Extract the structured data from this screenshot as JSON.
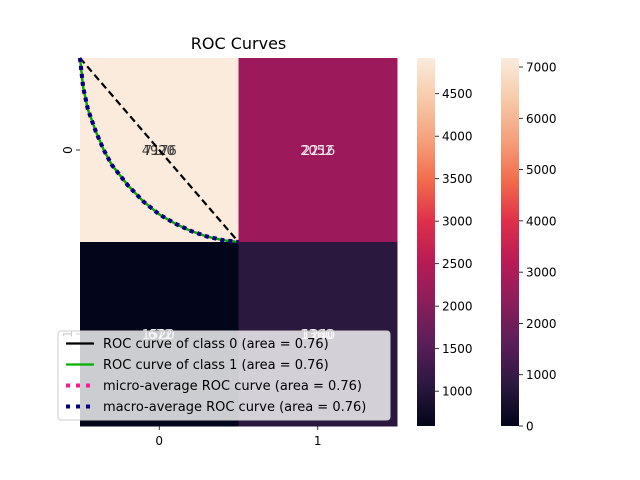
{
  "chart_data": {
    "type": "heatmap",
    "title": "ROC Curves",
    "xlabel": "",
    "ylabel": "",
    "x_tick_labels": [
      "0",
      "1"
    ],
    "y_tick_labels": [
      "0",
      "1"
    ],
    "cells": [
      {
        "row": 0,
        "col": 0,
        "labels": [
          "4920",
          "7176"
        ],
        "color": "#faebdd"
      },
      {
        "row": 0,
        "col": 1,
        "labels": [
          "2052",
          "2216"
        ],
        "color": "#9c1a5c"
      },
      {
        "row": 1,
        "col": 0,
        "labels": [
          "1520",
          "672"
        ],
        "color": "#03051a"
      },
      {
        "row": 1,
        "col": 1,
        "labels": [
          "1360",
          "1240"
        ],
        "color": "#2b183f"
      }
    ],
    "cell_text_colors": [
      [
        "#262626",
        "#ffffff"
      ],
      [
        "#ffffff",
        "#ffffff"
      ]
    ],
    "colorbars": [
      {
        "vmin": 590,
        "vmax": 4920,
        "ticks": [
          1000,
          1500,
          2000,
          2500,
          3000,
          3500,
          4000,
          4500
        ]
      },
      {
        "vmin": 0,
        "vmax": 7176,
        "ticks": [
          0,
          1000,
          2000,
          3000,
          4000,
          5000,
          6000,
          7000
        ]
      }
    ],
    "colormap": [
      "#03051a",
      "#2b183f",
      "#5a1e58",
      "#891e5b",
      "#b81b55",
      "#df2f4b",
      "#f26c4c",
      "#f5a07c",
      "#f7caa9",
      "#faebdd"
    ],
    "roc_axes": {
      "xlim": [
        0,
        1
      ],
      "ylim": [
        0,
        1
      ]
    },
    "series": [
      {
        "name": "ROC curve of class 0 (area = 0.76)",
        "color": "#000000",
        "style": "solid",
        "x": [
          0,
          0.02,
          0.05,
          0.1,
          0.15,
          0.2,
          0.3,
          0.4,
          0.5,
          0.6,
          0.7,
          0.8,
          0.9,
          1.0
        ],
        "y": [
          0,
          0.16,
          0.28,
          0.4,
          0.5,
          0.58,
          0.69,
          0.78,
          0.85,
          0.9,
          0.94,
          0.97,
          0.99,
          1.0
        ]
      },
      {
        "name": "ROC curve of class 1 (area = 0.76)",
        "color": "#00b000",
        "style": "solid",
        "x": [
          0,
          0.02,
          0.05,
          0.1,
          0.15,
          0.2,
          0.3,
          0.4,
          0.5,
          0.6,
          0.7,
          0.8,
          0.9,
          1.0
        ],
        "y": [
          0,
          0.16,
          0.28,
          0.4,
          0.5,
          0.58,
          0.69,
          0.78,
          0.85,
          0.9,
          0.94,
          0.97,
          0.99,
          1.0
        ]
      },
      {
        "name": "micro-average ROC curve (area = 0.76)",
        "color": "#ff1493",
        "style": "dotted",
        "x": [
          0,
          0.02,
          0.05,
          0.1,
          0.15,
          0.2,
          0.3,
          0.4,
          0.5,
          0.6,
          0.7,
          0.8,
          0.9,
          1.0
        ],
        "y": [
          0,
          0.16,
          0.28,
          0.4,
          0.5,
          0.58,
          0.69,
          0.78,
          0.85,
          0.9,
          0.94,
          0.97,
          0.99,
          1.0
        ]
      },
      {
        "name": "macro-average ROC curve (area = 0.76)",
        "color": "#000080",
        "style": "dotted",
        "x": [
          0,
          0.02,
          0.05,
          0.1,
          0.15,
          0.2,
          0.3,
          0.4,
          0.5,
          0.6,
          0.7,
          0.8,
          0.9,
          1.0
        ],
        "y": [
          0,
          0.16,
          0.28,
          0.4,
          0.5,
          0.58,
          0.69,
          0.78,
          0.85,
          0.9,
          0.94,
          0.97,
          0.99,
          1.0
        ]
      }
    ],
    "chance_line": {
      "x": [
        0,
        1
      ],
      "y": [
        0,
        1
      ],
      "color": "#000000",
      "style": "dashed"
    },
    "legend_placement": "lower-left"
  }
}
